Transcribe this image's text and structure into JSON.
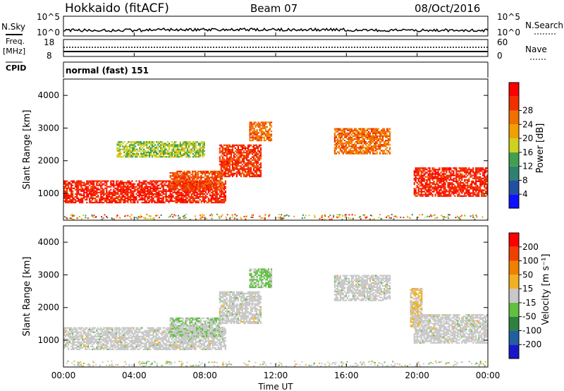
{
  "header": {
    "radar": "Hokkaido (fitACF)",
    "beam": "Beam 07",
    "date": "08/Oct/2016"
  },
  "sky_panel": {
    "left_label": "N.Sky",
    "right_label": "N.Search",
    "top_tick": "10^5",
    "bottom_tick": "10^0"
  },
  "freq_panel": {
    "left_label_1": "Freq.",
    "left_label_2": "[MHz]",
    "right_label": "Nave",
    "left_ticks": [
      "18",
      "8"
    ],
    "right_ticks": [
      "60",
      "0"
    ]
  },
  "cpid_panel": {
    "left_label": "CPID",
    "mode": "normal (fast) 151"
  },
  "x_axis": {
    "label": "Time UT",
    "ticks": [
      "00:00",
      "04:00",
      "08:00",
      "12:00",
      "16:00",
      "20:00",
      "00:00"
    ]
  },
  "power_colorbar": {
    "label": "Power [dB]",
    "ticks": [
      "4",
      "8",
      "12",
      "16",
      "20",
      "24",
      "28"
    ],
    "colors": [
      "#1010ff",
      "#2050a0",
      "#308070",
      "#40a050",
      "#d0d020",
      "#f0a000",
      "#f07000",
      "#f03000",
      "#ff0000"
    ]
  },
  "velocity_colorbar": {
    "label": "Velocity [m s⁻¹]",
    "ticks": [
      "200",
      "100",
      "50",
      "15",
      "-15",
      "-50",
      "-100",
      "-200"
    ],
    "colors": [
      "#1818c8",
      "#2060a0",
      "#308040",
      "#60c040",
      "#c8c8c8",
      "#f0b020",
      "#f08000",
      "#f04000",
      "#ff0000"
    ]
  },
  "chart_data": {
    "type": "heatmap",
    "x_range": [
      "00:00",
      "00:00"
    ],
    "y_range_km": [
      180,
      4500
    ],
    "y_ticks": [
      "1000",
      "2000",
      "3000",
      "4000"
    ],
    "ylabel": "Slant Range [km]",
    "xlabel": "Time UT",
    "panels": [
      {
        "quantity": "Power [dB]",
        "color_range": [
          0,
          30
        ],
        "echo_regions": [
          {
            "t0": 0.0,
            "t1": 9.2,
            "r0": 700,
            "r1": 1400,
            "value": 26
          },
          {
            "t0": 6.0,
            "t1": 9.0,
            "r0": 1100,
            "r1": 1700,
            "value": 24
          },
          {
            "t0": 8.8,
            "t1": 11.2,
            "r0": 1500,
            "r1": 2500,
            "value": 25
          },
          {
            "t0": 10.5,
            "t1": 11.8,
            "r0": 2600,
            "r1": 3200,
            "value": 22
          },
          {
            "t0": 15.3,
            "t1": 18.5,
            "r0": 2200,
            "r1": 3000,
            "value": 22
          },
          {
            "t0": 19.8,
            "t1": 24.0,
            "r0": 900,
            "r1": 1800,
            "value": 26
          },
          {
            "t0": 3.0,
            "t1": 8.0,
            "r0": 2100,
            "r1": 2600,
            "value": 14
          }
        ]
      },
      {
        "quantity": "Velocity [m s^-1]",
        "color_range": [
          -250,
          250
        ],
        "echo_regions": [
          {
            "t0": 0.0,
            "t1": 9.2,
            "r0": 700,
            "r1": 1400,
            "value": 0
          },
          {
            "t0": 6.0,
            "t1": 9.0,
            "r0": 1100,
            "r1": 1700,
            "value": -20
          },
          {
            "t0": 8.8,
            "t1": 11.2,
            "r0": 1500,
            "r1": 2500,
            "value": 0
          },
          {
            "t0": 10.5,
            "t1": 11.8,
            "r0": 2600,
            "r1": 3200,
            "value": -40
          },
          {
            "t0": 15.3,
            "t1": 18.5,
            "r0": 2200,
            "r1": 3000,
            "value": 0
          },
          {
            "t0": 19.6,
            "t1": 20.3,
            "r0": 1400,
            "r1": 2600,
            "value": 30
          },
          {
            "t0": 19.8,
            "t1": 24.0,
            "r0": 900,
            "r1": 1800,
            "value": 0
          }
        ]
      }
    ]
  }
}
